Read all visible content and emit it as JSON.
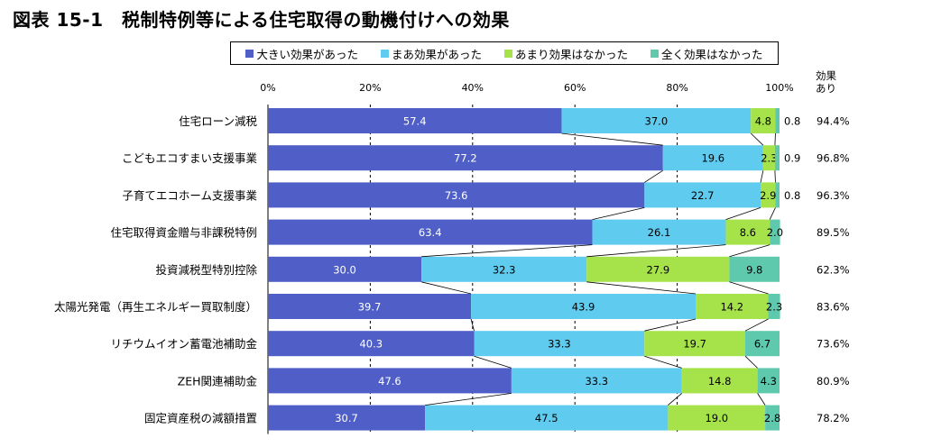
{
  "title": "図表 15-1　税制特例等による住宅取得の動機付けへの効果",
  "colors": {
    "series": [
      "#4f5fc7",
      "#5fcbef",
      "#a6e34a",
      "#5ec9ad"
    ],
    "connector": "#000000",
    "grid": "#000000"
  },
  "chart_data": {
    "type": "bar",
    "orientation": "horizontal",
    "stacked": true,
    "xlim": [
      0,
      100
    ],
    "tick_labels": [
      "0%",
      "20%",
      "40%",
      "60%",
      "80%",
      "100%"
    ],
    "legend_position": "top",
    "side_column_header": "効果\nあり",
    "categories": [
      "住宅ローン減税",
      "こどもエコすまい支援事業",
      "子育てエコホーム支援事業",
      "住宅取得資金贈与非課税特例",
      "投資減税型特別控除",
      "太陽光発電（再生エネルギー買取制度）",
      "リチウムイオン蓄電池補助金",
      "ZEH関連補助金",
      "固定資産税の減額措置"
    ],
    "series": [
      {
        "name": "大きい効果があった",
        "values": [
          57.4,
          77.2,
          73.6,
          63.4,
          30.0,
          39.7,
          40.3,
          47.6,
          30.7
        ]
      },
      {
        "name": "まあ効果があった",
        "values": [
          37.0,
          19.6,
          22.7,
          26.1,
          32.3,
          43.9,
          33.3,
          33.3,
          47.5
        ]
      },
      {
        "name": "あまり効果はなかった",
        "values": [
          4.8,
          2.3,
          2.9,
          8.6,
          27.9,
          14.2,
          19.7,
          14.8,
          19.0
        ]
      },
      {
        "name": "全く効果はなかった",
        "values": [
          0.8,
          0.9,
          0.8,
          2.0,
          9.8,
          2.3,
          6.7,
          4.3,
          2.8
        ]
      }
    ],
    "value_labels": [
      [
        "57.4",
        "37.0",
        "4.8",
        "0.8"
      ],
      [
        "77.2",
        "19.6",
        "2.3",
        "0.9"
      ],
      [
        "73.6",
        "22.7",
        "2.9",
        "0.8"
      ],
      [
        "63.4",
        "26.1",
        "8.6",
        "2.0"
      ],
      [
        "30.0",
        "32.3",
        "27.9",
        "9.8"
      ],
      [
        "39.7",
        "43.9",
        "14.2",
        "2.3"
      ],
      [
        "40.3",
        "33.3",
        "19.7",
        "6.7"
      ],
      [
        "47.6",
        "33.3",
        "14.8",
        "4.3"
      ],
      [
        "30.7",
        "47.5",
        "19.0",
        "2.8"
      ]
    ],
    "effect_total_labels": [
      "94.4%",
      "96.8%",
      "96.3%",
      "89.5%",
      "62.3%",
      "83.6%",
      "73.6%",
      "80.9%",
      "78.2%"
    ]
  }
}
